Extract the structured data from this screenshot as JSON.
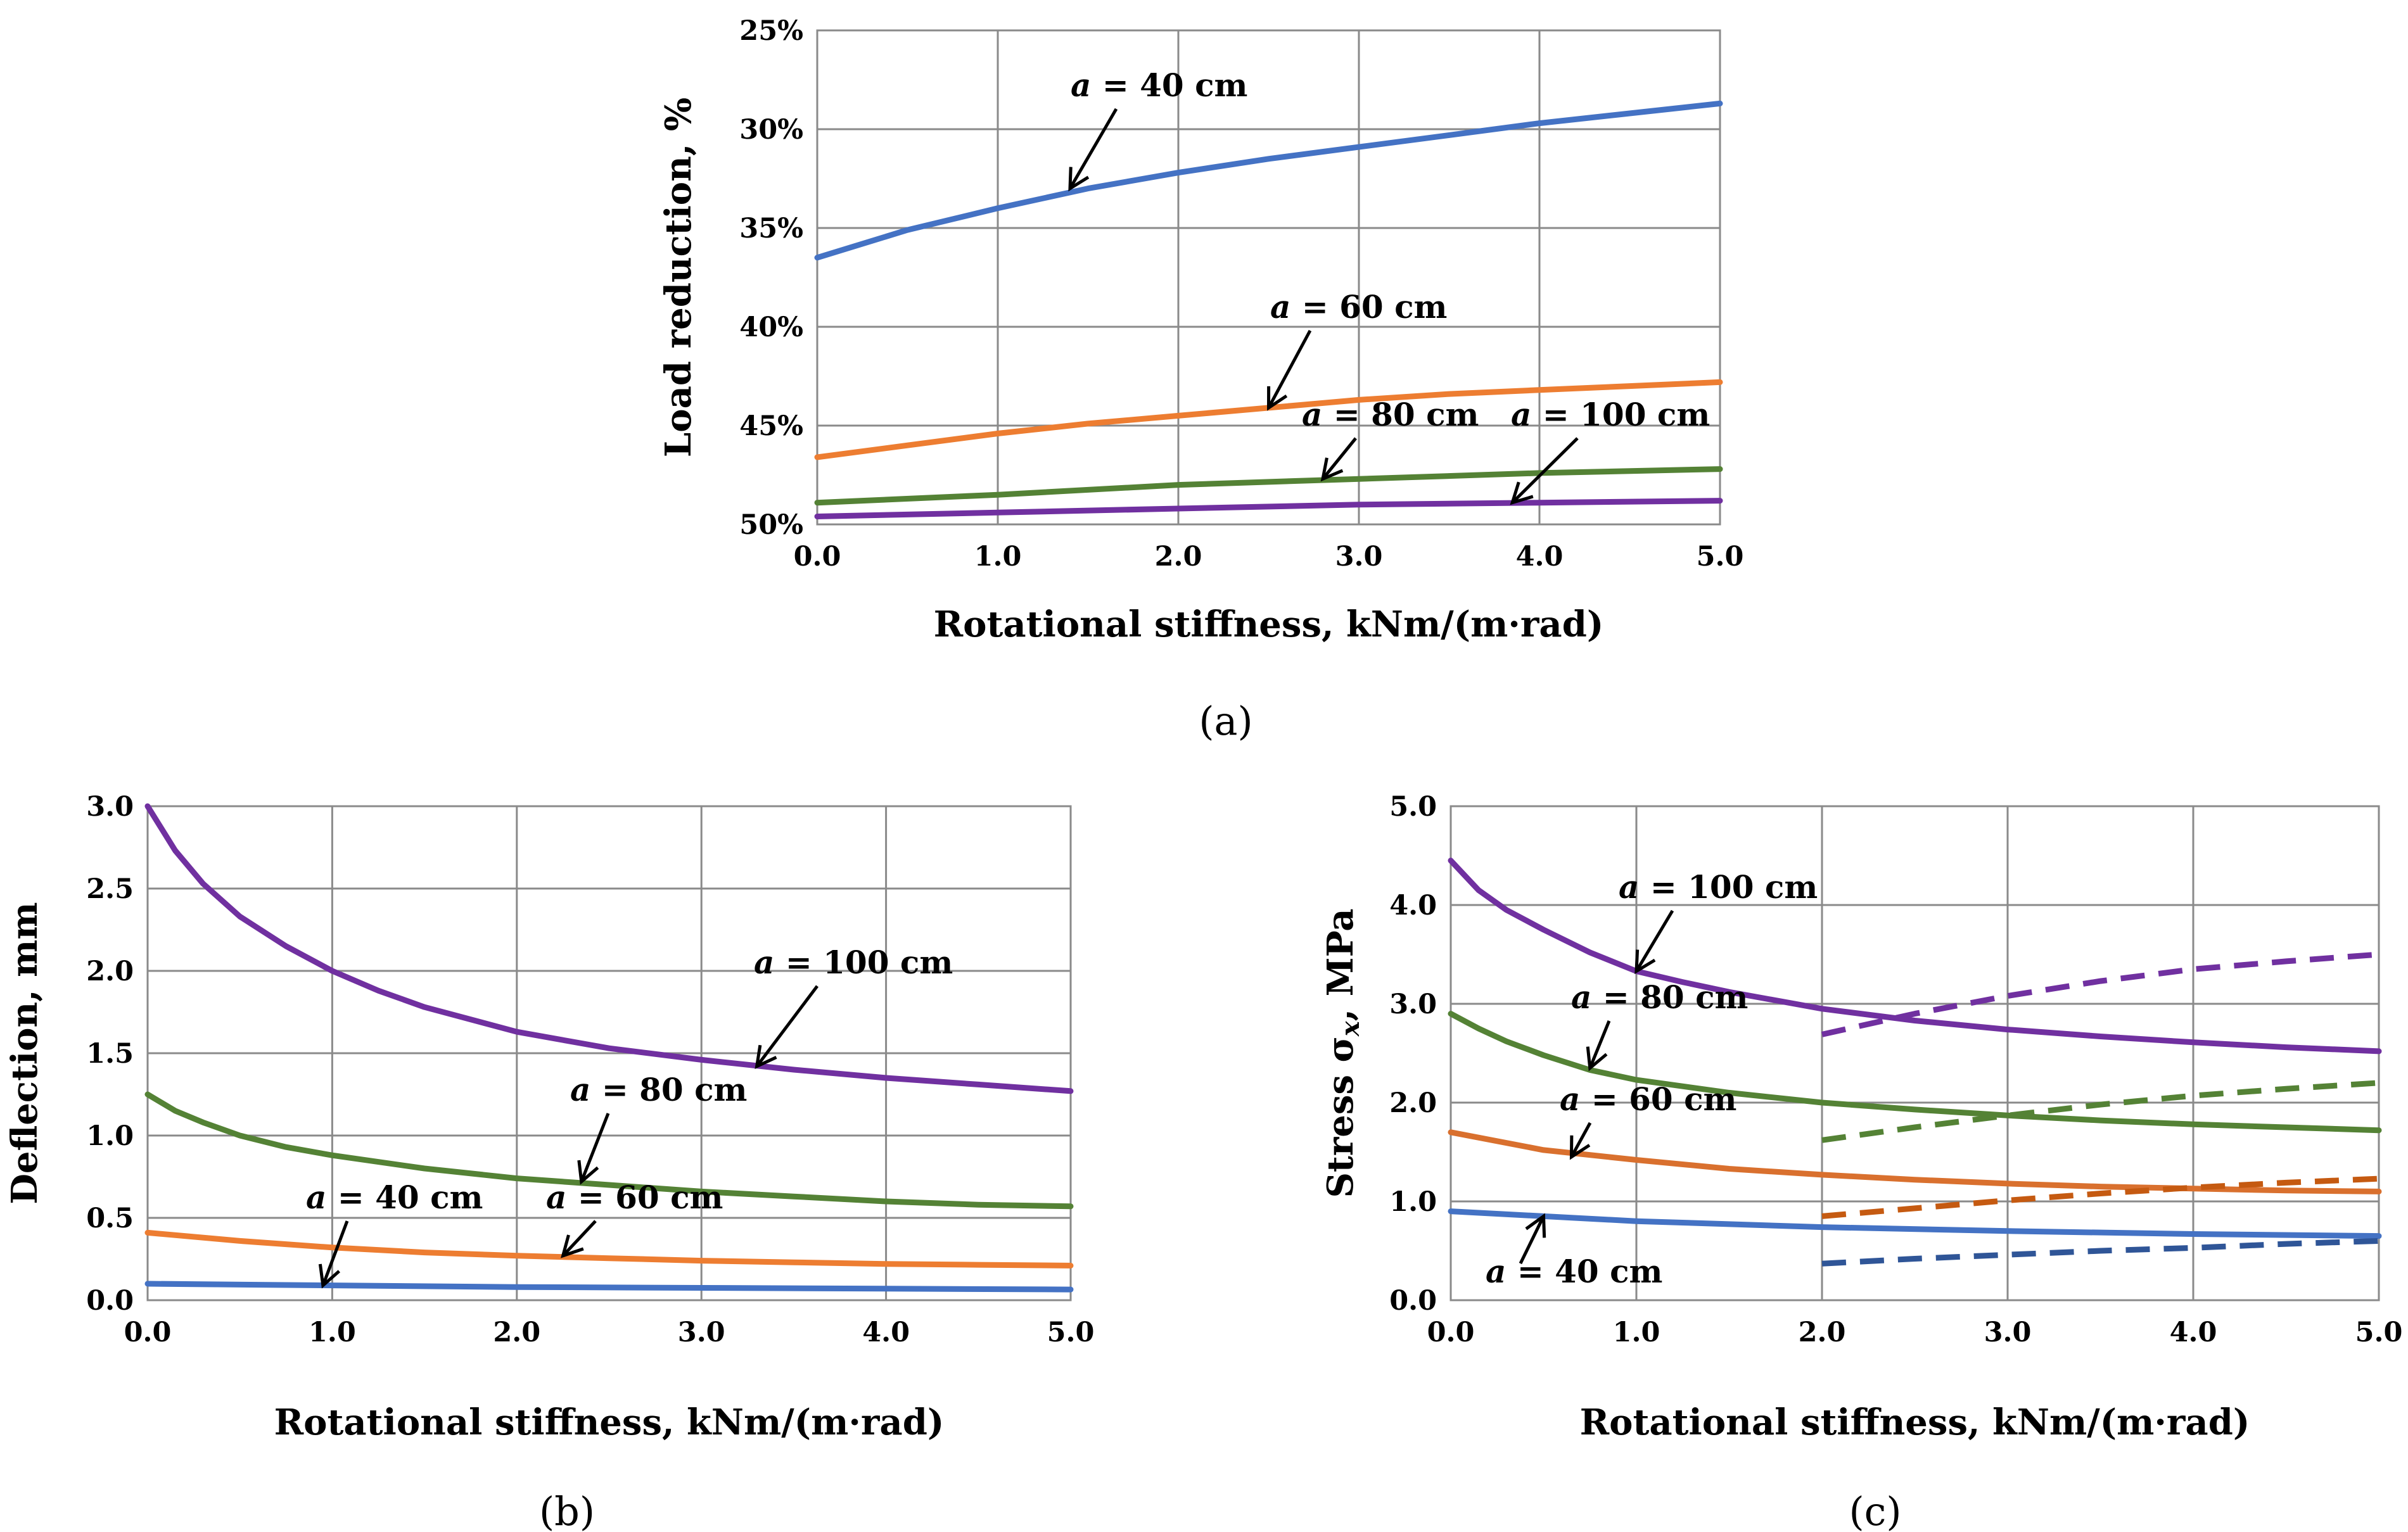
{
  "chart_data": [
    {
      "type": "line",
      "panel": "a",
      "caption": "(a)",
      "title": "",
      "xlabel": "Rotational stiffness, kNm/(m·rad)",
      "ylabel": "Load reduction, %",
      "x_ticks": [
        "0.0",
        "1.0",
        "2.0",
        "3.0",
        "4.0",
        "5.0"
      ],
      "y_ticks": [
        "25%",
        "30%",
        "35%",
        "40%",
        "45%",
        "50%"
      ],
      "xlim": [
        0,
        5
      ],
      "ylim": [
        25,
        50
      ],
      "y_reversed": true,
      "grid": true,
      "series": [
        {
          "name": "a = 40 cm",
          "color": "#4472C4",
          "dashed": false,
          "x": [
            0,
            0.5,
            1,
            1.5,
            2,
            2.5,
            3,
            3.5,
            4,
            4.5,
            5
          ],
          "y": [
            36.5,
            35.1,
            34.0,
            33.0,
            32.2,
            31.5,
            30.9,
            30.3,
            29.7,
            29.2,
            28.7
          ]
        },
        {
          "name": "a = 60 cm",
          "color": "#ED7D31",
          "dashed": false,
          "x": [
            0,
            0.5,
            1,
            1.5,
            2,
            2.5,
            3,
            3.5,
            4,
            4.5,
            5
          ],
          "y": [
            46.6,
            46.0,
            45.4,
            44.9,
            44.5,
            44.1,
            43.7,
            43.4,
            43.2,
            43.0,
            42.8
          ]
        },
        {
          "name": "a = 80 cm",
          "color": "#548235",
          "dashed": false,
          "x": [
            0,
            1,
            2,
            3,
            4,
            5
          ],
          "y": [
            48.9,
            48.5,
            48.0,
            47.7,
            47.4,
            47.2
          ]
        },
        {
          "name": "a = 100 cm",
          "color": "#7030A0",
          "dashed": false,
          "x": [
            0,
            1,
            2,
            3,
            4,
            5
          ],
          "y": [
            49.6,
            49.4,
            49.2,
            49.0,
            48.9,
            48.8
          ]
        }
      ],
      "annotations": [
        {
          "prefix": "a",
          "text": " = 40 cm",
          "x": 1.4,
          "y": 33.0
        },
        {
          "prefix": "a",
          "text": " = 60 cm",
          "x": 2.5,
          "y": 44.1
        },
        {
          "prefix": "a",
          "text": " = 80 cm",
          "x": 2.8,
          "y": 47.7
        },
        {
          "prefix": "a",
          "text": " = 100 cm",
          "x": 3.85,
          "y": 48.9
        }
      ]
    },
    {
      "type": "line",
      "panel": "b",
      "caption": "(b)",
      "title": "",
      "xlabel": "Rotational stiffness, kNm/(m·rad)",
      "ylabel": "Deflection, mm",
      "x_ticks": [
        "0.0",
        "1.0",
        "2.0",
        "3.0",
        "4.0",
        "5.0"
      ],
      "y_ticks": [
        "0.0",
        "0.5",
        "1.0",
        "1.5",
        "2.0",
        "2.5",
        "3.0"
      ],
      "xlim": [
        0,
        5
      ],
      "ylim": [
        0,
        3
      ],
      "y_reversed": false,
      "grid": true,
      "series": [
        {
          "name": "a = 40 cm",
          "color": "#4472C4",
          "dashed": false,
          "x": [
            0,
            1,
            2,
            3,
            4,
            5
          ],
          "y": [
            0.1,
            0.09,
            0.08,
            0.075,
            0.07,
            0.065
          ]
        },
        {
          "name": "a = 60 cm",
          "color": "#ED7D31",
          "dashed": false,
          "x": [
            0,
            0.5,
            1,
            1.5,
            2,
            2.5,
            3,
            3.5,
            4,
            4.5,
            5
          ],
          "y": [
            0.41,
            0.36,
            0.32,
            0.29,
            0.27,
            0.255,
            0.24,
            0.23,
            0.22,
            0.215,
            0.21
          ]
        },
        {
          "name": "a = 80 cm",
          "color": "#548235",
          "dashed": false,
          "x": [
            0,
            0.15,
            0.3,
            0.5,
            0.75,
            1,
            1.5,
            2,
            2.5,
            3,
            3.5,
            4,
            4.5,
            5
          ],
          "y": [
            1.25,
            1.15,
            1.08,
            1.0,
            0.93,
            0.88,
            0.8,
            0.74,
            0.7,
            0.66,
            0.63,
            0.6,
            0.58,
            0.57
          ]
        },
        {
          "name": "a = 100 cm",
          "color": "#7030A0",
          "dashed": false,
          "x": [
            0,
            0.15,
            0.3,
            0.5,
            0.75,
            1,
            1.25,
            1.5,
            2,
            2.5,
            3,
            3.5,
            4,
            4.5,
            5
          ],
          "y": [
            3.0,
            2.73,
            2.53,
            2.33,
            2.15,
            2.0,
            1.88,
            1.78,
            1.63,
            1.53,
            1.46,
            1.4,
            1.35,
            1.31,
            1.27
          ]
        }
      ],
      "annotations": [
        {
          "prefix": "a",
          "text": " = 40 cm",
          "x": 0.95,
          "y": 0.09
        },
        {
          "prefix": "a",
          "text": " = 60 cm",
          "x": 2.25,
          "y": 0.27
        },
        {
          "prefix": "a",
          "text": " = 80 cm",
          "x": 2.35,
          "y": 0.72
        },
        {
          "prefix": "a",
          "text": " = 100 cm",
          "x": 3.3,
          "y": 1.42
        }
      ]
    },
    {
      "type": "line",
      "panel": "c",
      "caption": "(c)",
      "title": "",
      "xlabel": "Rotational stiffness, kNm/(m·rad)",
      "ylabel_main": "Stress σ",
      "ylabel_sub": "x",
      "ylabel_tail": ", MPa",
      "x_ticks": [
        "0.0",
        "1.0",
        "2.0",
        "3.0",
        "4.0",
        "5.0"
      ],
      "y_ticks": [
        "0.0",
        "1.0",
        "2.0",
        "3.0",
        "4.0",
        "5.0"
      ],
      "xlim": [
        0,
        5
      ],
      "ylim": [
        0,
        5
      ],
      "y_reversed": false,
      "grid": true,
      "series": [
        {
          "name": "a = 40 cm",
          "color": "#4472C4",
          "dashed": false,
          "x": [
            0,
            1,
            2,
            3,
            4,
            5
          ],
          "y": [
            0.9,
            0.8,
            0.74,
            0.7,
            0.67,
            0.65
          ]
        },
        {
          "name": "a = 60 cm",
          "color": "#D9702E",
          "dashed": false,
          "x": [
            0,
            0.5,
            1,
            1.5,
            2,
            2.5,
            3,
            3.5,
            4,
            4.5,
            5
          ],
          "y": [
            1.7,
            1.52,
            1.42,
            1.33,
            1.27,
            1.22,
            1.18,
            1.15,
            1.13,
            1.11,
            1.1
          ]
        },
        {
          "name": "a = 80 cm",
          "color": "#548235",
          "dashed": false,
          "x": [
            0,
            0.15,
            0.3,
            0.5,
            0.75,
            1,
            1.5,
            2,
            2.5,
            3,
            3.5,
            4,
            4.5,
            5
          ],
          "y": [
            2.9,
            2.75,
            2.62,
            2.48,
            2.33,
            2.23,
            2.1,
            2.0,
            1.93,
            1.87,
            1.82,
            1.78,
            1.75,
            1.72
          ]
        },
        {
          "name": "a = 100 cm",
          "color": "#7030A0",
          "dashed": false,
          "x": [
            0,
            0.15,
            0.3,
            0.5,
            0.75,
            1,
            1.25,
            1.5,
            2,
            2.5,
            3,
            3.5,
            4,
            4.5,
            5
          ],
          "y": [
            4.45,
            4.15,
            3.95,
            3.75,
            3.52,
            3.33,
            3.22,
            3.12,
            2.95,
            2.83,
            2.74,
            2.67,
            2.61,
            2.56,
            2.52
          ]
        },
        {
          "name": "a = 40 cm (dashed)",
          "color": "#2F5597",
          "dashed": true,
          "x": [
            2,
            2.5,
            3,
            3.5,
            4,
            4.5,
            5
          ],
          "y": [
            0.37,
            0.42,
            0.46,
            0.5,
            0.53,
            0.57,
            0.6
          ]
        },
        {
          "name": "a = 60 cm (dashed)",
          "color": "#C55A11",
          "dashed": true,
          "x": [
            2,
            2.5,
            3,
            3.5,
            4,
            4.5,
            5
          ],
          "y": [
            0.85,
            0.93,
            1.01,
            1.08,
            1.14,
            1.19,
            1.23
          ]
        },
        {
          "name": "a = 80 cm (dashed)",
          "color": "#548235",
          "dashed": true,
          "x": [
            2,
            2.5,
            3,
            3.5,
            4,
            4.5,
            5
          ],
          "y": [
            1.62,
            1.75,
            1.87,
            1.98,
            2.07,
            2.14,
            2.2
          ]
        },
        {
          "name": "a = 100 cm (dashed)",
          "color": "#7030A0",
          "dashed": true,
          "x": [
            2,
            2.5,
            3,
            3.5,
            4,
            4.5,
            5
          ],
          "y": [
            2.69,
            2.9,
            3.08,
            3.23,
            3.35,
            3.43,
            3.5
          ]
        }
      ],
      "annotations": [
        {
          "prefix": "a",
          "text": " = 40 cm",
          "x": 0.5,
          "y": 0.85
        },
        {
          "prefix": "a",
          "text": " = 60 cm",
          "x": 0.65,
          "y": 1.45
        },
        {
          "prefix": "a",
          "text": " = 80 cm",
          "x": 0.75,
          "y": 2.35
        },
        {
          "prefix": "a",
          "text": " = 100 cm",
          "x": 1.0,
          "y": 3.33
        }
      ]
    }
  ]
}
